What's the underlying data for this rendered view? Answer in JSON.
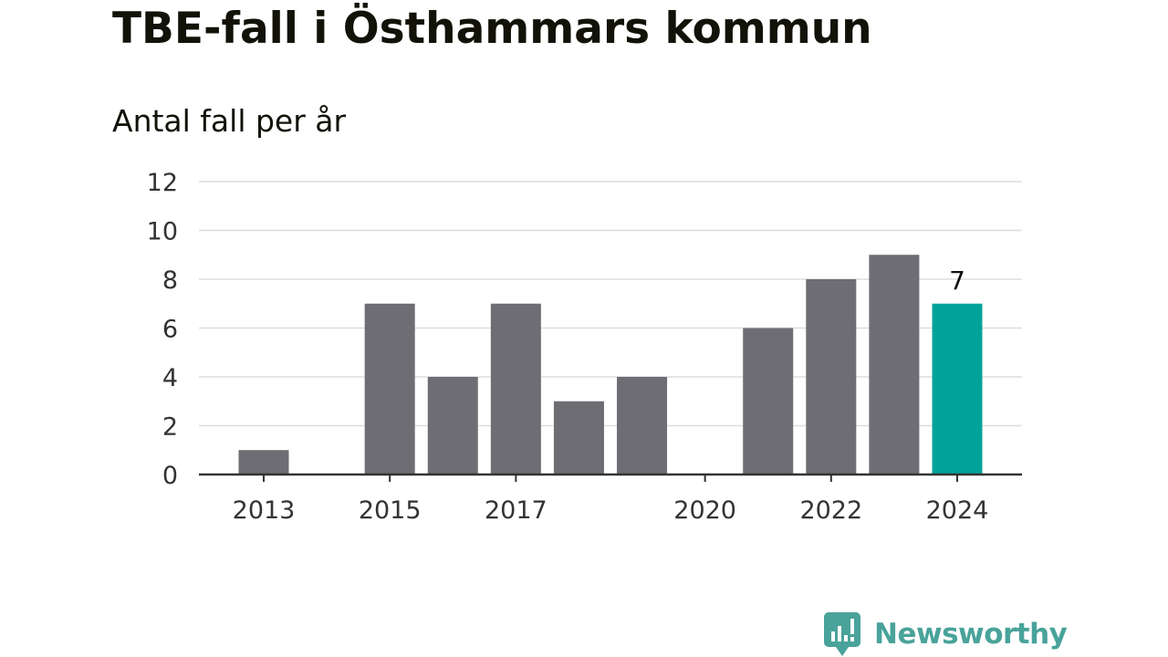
{
  "header": {
    "title": "TBE-fall i Östhammars kommun",
    "subtitle": "Antal fall per år"
  },
  "brand": {
    "name": "Newsworthy",
    "icon": "newsworthy-logo-icon",
    "color": "#49a39a"
  },
  "colors": {
    "bar": "#6e6d73",
    "highlight": "#00a39a",
    "grid": "#dddddd",
    "axis": "#333333",
    "text": "#333333"
  },
  "chart_data": {
    "type": "bar",
    "title": "TBE-fall i Östhammars kommun",
    "subtitle": "Antal fall per år",
    "xlabel": "",
    "ylabel": "",
    "categories": [
      "2013",
      "2014",
      "2015",
      "2016",
      "2017",
      "2018",
      "2019",
      "2020",
      "2021",
      "2022",
      "2023",
      "2024"
    ],
    "values": [
      1,
      0,
      7,
      4,
      7,
      3,
      4,
      0,
      6,
      8,
      9,
      7
    ],
    "x_tick_labels": [
      "2013",
      "2015",
      "2017",
      "2020",
      "2022",
      "2024"
    ],
    "y_ticks": [
      0,
      2,
      4,
      6,
      8,
      10,
      12
    ],
    "ylim": [
      0,
      12
    ],
    "grid": true,
    "highlight_category": "2024",
    "data_labels": [
      {
        "category": "2024",
        "text": "7"
      }
    ]
  }
}
